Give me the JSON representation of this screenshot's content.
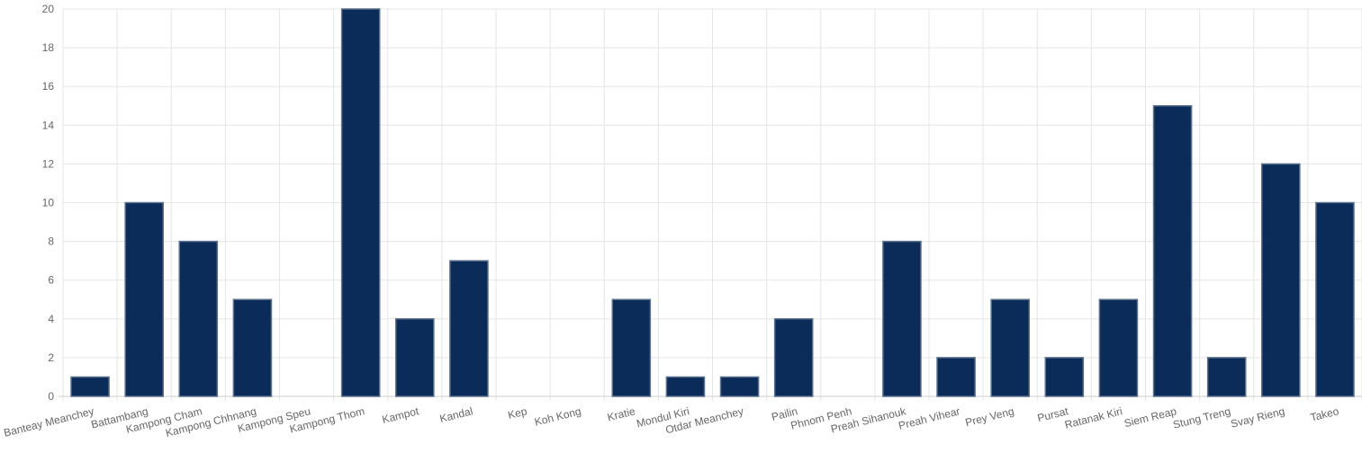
{
  "chart_data": {
    "type": "bar",
    "title": "",
    "xlabel": "",
    "ylabel": "",
    "categories": [
      "Banteay Meanchey",
      "Battambang",
      "Kampong Cham",
      "Kampong Chhnang",
      "Kampong Speu",
      "Kampong Thom",
      "Kampot",
      "Kandal",
      "Kep",
      "Koh Kong",
      "Kratie",
      "Mondul Kiri",
      "Otdar Meanchey",
      "Pailin",
      "Phnom Penh",
      "Preah Sihanouk",
      "Preah Vihear",
      "Prey Veng",
      "Pursat",
      "Ratanak Kiri",
      "Siem Reap",
      "Stung Treng",
      "Svay Rieng",
      "Takeo"
    ],
    "values": [
      1,
      10,
      8,
      5,
      0,
      20,
      4,
      7,
      0,
      0,
      5,
      1,
      1,
      4,
      0,
      8,
      2,
      5,
      2,
      5,
      15,
      2,
      12,
      10
    ],
    "ylim": [
      0,
      20
    ],
    "yticks": [
      0,
      2,
      4,
      6,
      8,
      10,
      12,
      14,
      16,
      18,
      20
    ],
    "grid": true,
    "legend": "none",
    "colors": {
      "bar": "#0b2c59",
      "bar_border": "#5a6f8c",
      "grid": "#e5e5e5",
      "tick_text": "#666666"
    }
  }
}
